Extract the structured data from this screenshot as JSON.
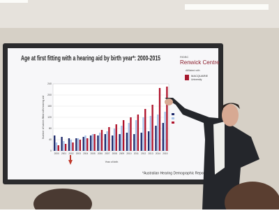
{
  "slide": {
    "title": "Age at first fitting with a hearing aid by birth year*: 2000-2015",
    "logo_small": "RIDBC",
    "logo_name": "Renwick Centre",
    "affiliation": "Affiliated with",
    "university": "MACQUARIE",
    "university_sub": "University",
    "footnote": "*Australian Hearing Demographic Report"
  },
  "chart_data": {
    "type": "bar",
    "x_label": "Year of birth",
    "y_label": "Number of babies fitted with hearing aid",
    "categories": [
      "2000",
      "2001",
      "2002",
      "2003",
      "2004",
      "2005",
      "2006",
      "2007",
      "2008",
      "2009",
      "2010",
      "2011",
      "2012",
      "2013",
      "2014",
      "2015"
    ],
    "series": [
      {
        "color": "#1f2a6b",
        "values": [
          55,
          50,
          45,
          45,
          50,
          55,
          55,
          60,
          55,
          60,
          65,
          60,
          65,
          70,
          90,
          100
        ]
      },
      {
        "color": "#a9c4ea",
        "values": [
          30,
          35,
          40,
          45,
          55,
          60,
          65,
          70,
          80,
          90,
          100,
          110,
          120,
          125,
          130,
          140
        ]
      },
      {
        "color": "#b0142c",
        "values": [
          20,
          25,
          30,
          40,
          45,
          60,
          75,
          85,
          95,
          110,
          120,
          130,
          150,
          165,
          225,
          230
        ]
      }
    ],
    "ylim": [
      0,
      240
    ],
    "yticks": [
      0,
      40,
      80,
      120,
      160,
      200,
      240
    ],
    "grid": true
  }
}
